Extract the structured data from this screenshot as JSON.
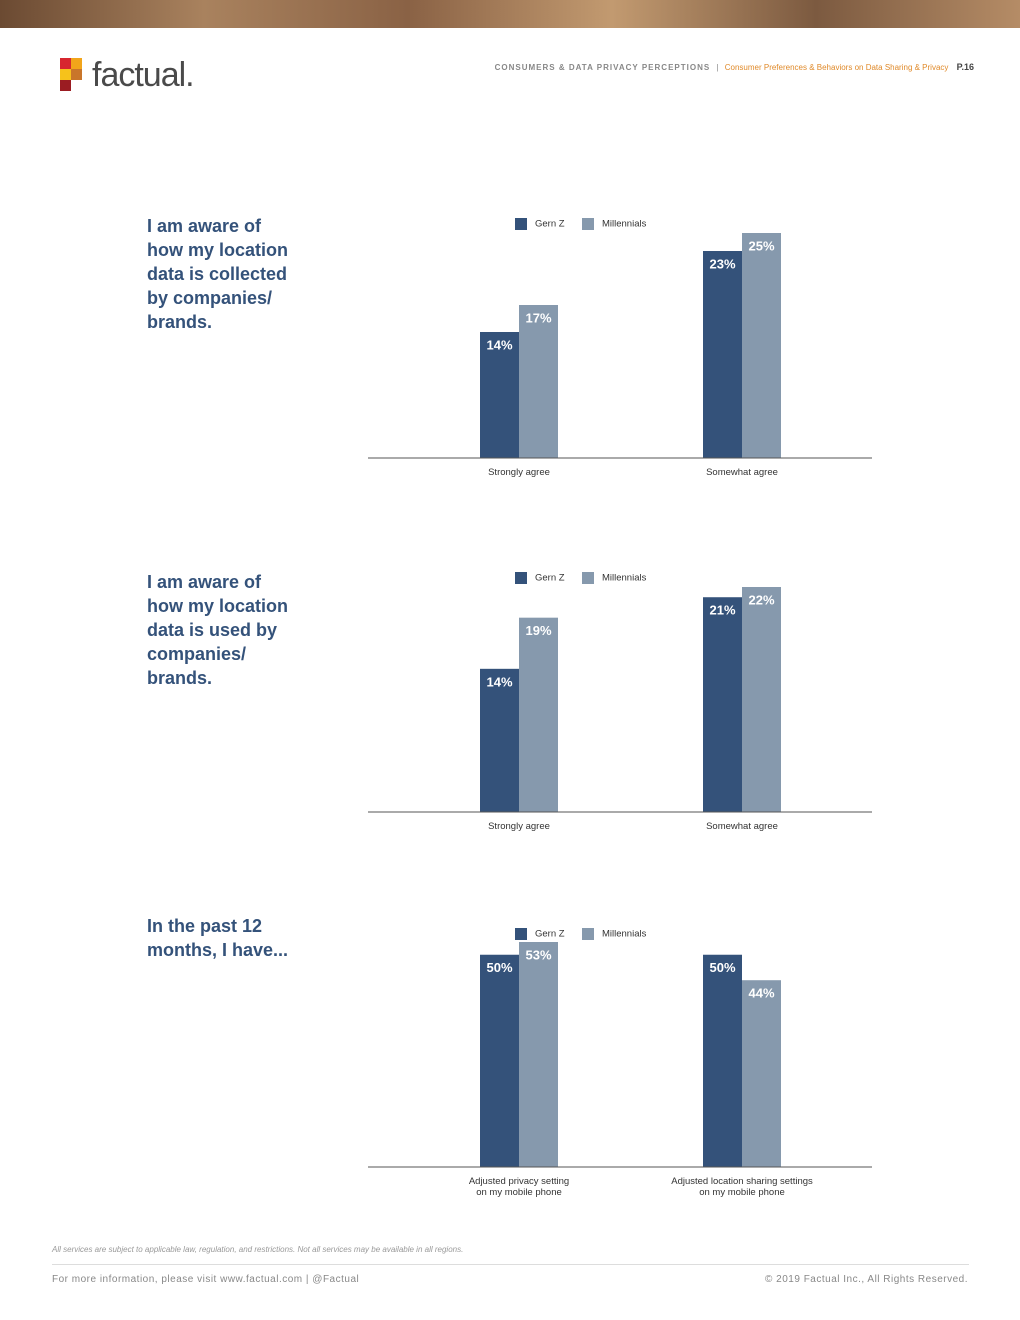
{
  "header": {
    "logo": "factual.",
    "section": "CONSUMERS & DATA PRIVACY PERCEPTIONS",
    "separator": "|",
    "subsection": "Consumer Preferences & Behaviors on Data Sharing & Privacy",
    "page": "P.16"
  },
  "chart_data": [
    {
      "type": "bar",
      "title_lines": [
        "I am aware of",
        "how my location",
        "data is collected",
        "by companies/",
        "brands."
      ],
      "categories": [
        "Strongly agree",
        "Somewhat agree"
      ],
      "series": [
        {
          "name": "Gern Z",
          "color": "#34527a",
          "values": [
            14,
            23
          ],
          "value_labels": [
            "14%",
            "23%"
          ]
        },
        {
          "name": "Millennials",
          "color": "#8699ad",
          "values": [
            17,
            25
          ],
          "value_labels": [
            "17%",
            "25%"
          ]
        }
      ]
    },
    {
      "type": "bar",
      "title_lines": [
        "I am aware of",
        "how my location",
        "data is used by",
        "companies/",
        "brands."
      ],
      "categories": [
        "Strongly agree",
        "Somewhat agree"
      ],
      "series": [
        {
          "name": "Gern Z",
          "color": "#34527a",
          "values": [
            14,
            21
          ],
          "value_labels": [
            "14%",
            "21%"
          ]
        },
        {
          "name": "Millennials",
          "color": "#8699ad",
          "values": [
            19,
            22
          ],
          "value_labels": [
            "19%",
            "22%"
          ]
        }
      ]
    },
    {
      "type": "bar",
      "title_lines": [
        "In the past 12",
        "months, I have..."
      ],
      "categories": [
        "Adjusted privacy setting\non my mobile phone",
        "Adjusted location sharing settings\non my mobile phone"
      ],
      "series": [
        {
          "name": "Gern Z",
          "color": "#34527a",
          "values": [
            50,
            50
          ],
          "value_labels": [
            "50%",
            "50%"
          ]
        },
        {
          "name": "Millennials",
          "color": "#8699ad",
          "values": [
            53,
            44
          ],
          "value_labels": [
            "53%",
            "44%"
          ]
        }
      ]
    }
  ],
  "footer": {
    "disclaimer": "All services are subject to applicable law, regulation, and restrictions. Not all services may be available in all regions.",
    "info": "For more information, please visit www.factual.com | @Factual",
    "copyright": "© 2019 Factual Inc., All Rights Reserved."
  }
}
